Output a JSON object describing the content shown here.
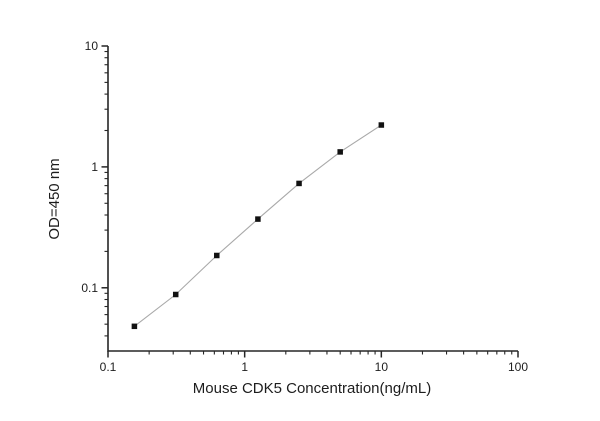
{
  "figure": {
    "background_color": "#ffffff",
    "text_color": "#1d1d1d",
    "axis_color": "#262626"
  },
  "chart_data": {
    "type": "line",
    "title": "",
    "xlabel": "Mouse CDK5 Concentration(ng/mL)",
    "ylabel": "OD=450 nm",
    "x_scale": "log",
    "y_scale": "log",
    "xlim": [
      0.1,
      100
    ],
    "ylim": [
      0.03,
      10
    ],
    "x": [
      0.156,
      0.313,
      0.625,
      1.25,
      2.5,
      5,
      10
    ],
    "y": [
      0.048,
      0.088,
      0.185,
      0.37,
      0.73,
      1.33,
      2.22
    ],
    "x_major_ticks": [
      0.1,
      1,
      10,
      100
    ],
    "x_major_tick_labels": [
      "0.1",
      "1",
      "10",
      "100"
    ],
    "y_major_ticks": [
      0.1,
      1,
      10
    ],
    "y_major_tick_labels": [
      "0.1",
      "1",
      "10"
    ],
    "grid": false,
    "legend": "none",
    "marker": "filled-square",
    "marker_color": "#111111",
    "line_color": "#a9a9a9"
  }
}
